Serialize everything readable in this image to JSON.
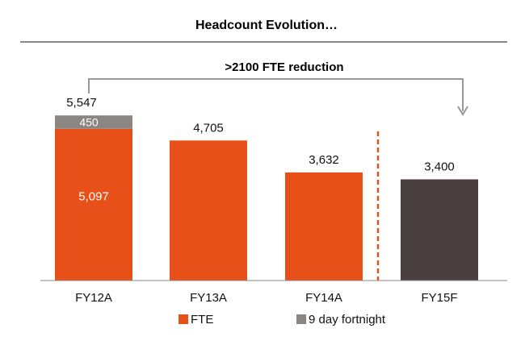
{
  "chart_data": {
    "type": "bar",
    "stacked": true,
    "title": "Headcount Evolution…",
    "annotation": ">2100 FTE reduction",
    "categories": [
      "FY12A",
      "FY13A",
      "FY14A",
      "FY15F"
    ],
    "totals": [
      "5,547",
      "4,705",
      "3,632",
      "3,400"
    ],
    "series": [
      {
        "name": "FTE",
        "values": [
          5097,
          4705,
          3632,
          3400
        ],
        "value_labels": [
          "5,097",
          null,
          null,
          null
        ]
      },
      {
        "name": "9 day fortnight",
        "values": [
          450,
          0,
          0,
          0
        ],
        "value_labels": [
          "450",
          null,
          null,
          null
        ]
      }
    ],
    "forecast_categories": [
      "FY15F"
    ],
    "ylim": [
      0,
      6500
    ],
    "grid": false,
    "legend": "bottom",
    "colors": {
      "fte": "#e8501a",
      "nine_day": "#8c8682",
      "forecast": "#4a4040",
      "divider": "#e8501a",
      "rule": "#888888",
      "arrow": "#999999"
    }
  }
}
